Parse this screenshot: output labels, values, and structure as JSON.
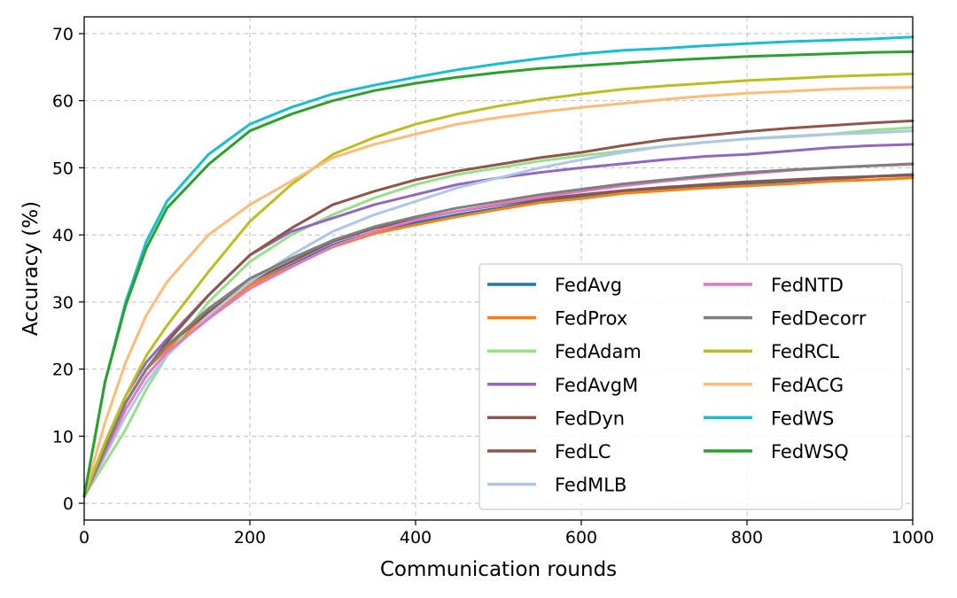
{
  "chart_data": {
    "type": "line",
    "xlabel": "Communication rounds",
    "ylabel": "Accuracy (%)",
    "xlim": [
      0,
      1000
    ],
    "ylim": [
      -2.5,
      72.5
    ],
    "xticks": [
      0,
      200,
      400,
      600,
      800,
      1000
    ],
    "yticks": [
      0,
      10,
      20,
      30,
      40,
      50,
      60,
      70
    ],
    "grid": true,
    "legend_position": "bottom-right",
    "legend_columns": 2,
    "x": [
      0,
      25,
      50,
      75,
      100,
      150,
      200,
      250,
      300,
      350,
      400,
      450,
      500,
      550,
      600,
      650,
      700,
      750,
      800,
      850,
      900,
      950,
      1000
    ],
    "series": [
      {
        "name": "FedAvg",
        "color": "#1f77b4",
        "values": [
          1,
          8,
          15,
          20,
          23,
          28,
          32.5,
          35.5,
          38.5,
          40.5,
          41.8,
          43,
          44,
          45,
          45.8,
          46.5,
          46.8,
          47.3,
          47.6,
          48,
          48.3,
          48.7,
          49
        ]
      },
      {
        "name": "FedProx",
        "color": "#ff7f0e",
        "values": [
          1,
          8,
          15,
          20,
          23,
          28,
          32.5,
          35.3,
          38.2,
          40.2,
          41.5,
          42.7,
          43.8,
          44.8,
          45.4,
          46.2,
          46.6,
          47,
          47.3,
          47.6,
          48,
          48.2,
          48.5
        ]
      },
      {
        "name": "FedAdam",
        "color": "#98df8a",
        "values": [
          1,
          6,
          11,
          17,
          22,
          30,
          36,
          40,
          43,
          45.5,
          47.5,
          49,
          50,
          51,
          51.8,
          52.5,
          53.2,
          53.8,
          54.3,
          54.6,
          55,
          55.6,
          56
        ]
      },
      {
        "name": "FedAvgM",
        "color": "#9467bd",
        "values": [
          1,
          9,
          16,
          21,
          24.5,
          31,
          37,
          40.5,
          42.5,
          44.5,
          46,
          47.5,
          48.5,
          49.3,
          50,
          50.6,
          51.2,
          51.7,
          52,
          52.5,
          53,
          53.3,
          53.5
        ]
      },
      {
        "name": "FedDyn",
        "color": "#8c564b",
        "values": [
          1,
          8,
          15,
          20,
          24,
          31,
          37,
          41,
          44.5,
          46.5,
          48.2,
          49.5,
          50.5,
          51.5,
          52.3,
          53.3,
          54.2,
          54.8,
          55.4,
          55.9,
          56.3,
          56.7,
          57
        ]
      },
      {
        "name": "FedLC",
        "color": "#8c564b",
        "values": [
          1,
          8,
          15,
          20,
          23.5,
          28.5,
          33,
          36,
          39,
          41,
          42.3,
          43.5,
          44.5,
          45.3,
          46,
          46.6,
          47.1,
          47.5,
          47.9,
          48.2,
          48.5,
          48.7,
          48.9
        ]
      },
      {
        "name": "FedMLB",
        "color": "#aec7e8",
        "values": [
          1,
          7,
          13,
          18,
          22,
          28,
          33,
          37,
          40.5,
          43,
          45,
          47,
          48.5,
          50,
          51.2,
          52.3,
          53.2,
          53.8,
          54.3,
          54.7,
          55,
          55.2,
          55.5
        ]
      },
      {
        "name": "FedNTD",
        "color": "#e377c2",
        "values": [
          1,
          7.5,
          14,
          19,
          22.5,
          27.5,
          32,
          35.2,
          38.3,
          40.5,
          42.2,
          43.5,
          44.6,
          45.6,
          46.5,
          47.3,
          48,
          48.6,
          49.1,
          49.6,
          50,
          50.3,
          50.5
        ]
      },
      {
        "name": "FedDecorr",
        "color": "#7f7f7f",
        "values": [
          1,
          8,
          15,
          20,
          23.5,
          29,
          33.5,
          36.5,
          39.2,
          41.2,
          42.7,
          44,
          45,
          46,
          46.8,
          47.6,
          48.2,
          48.8,
          49.3,
          49.7,
          50,
          50.3,
          50.6
        ]
      },
      {
        "name": "FedRCL",
        "color": "#bcbd22",
        "values": [
          1,
          9,
          16,
          22,
          26.5,
          34.5,
          42,
          47.5,
          52,
          54.5,
          56.5,
          58,
          59.2,
          60.2,
          61,
          61.7,
          62.2,
          62.6,
          63,
          63.3,
          63.6,
          63.8,
          64
        ]
      },
      {
        "name": "FedACG",
        "color": "#ffbb78",
        "values": [
          1,
          12,
          21,
          28,
          33,
          40,
          44.5,
          48,
          51.5,
          53.5,
          55,
          56.5,
          57.5,
          58.3,
          59,
          59.6,
          60.2,
          60.7,
          61.1,
          61.4,
          61.7,
          61.9,
          62
        ]
      },
      {
        "name": "FedWS",
        "color": "#17becf",
        "values": [
          1,
          18,
          30,
          39,
          45,
          52,
          56.5,
          59,
          61,
          62.3,
          63.5,
          64.6,
          65.5,
          66.3,
          67,
          67.5,
          67.8,
          68.2,
          68.5,
          68.8,
          69,
          69.2,
          69.5
        ]
      },
      {
        "name": "FedWSQ",
        "color": "#2ca02c",
        "values": [
          1,
          18,
          29.5,
          38,
          44,
          50.5,
          55.5,
          58,
          60,
          61.5,
          62.6,
          63.5,
          64.2,
          64.8,
          65.2,
          65.6,
          66,
          66.3,
          66.6,
          66.8,
          67,
          67.2,
          67.3
        ]
      }
    ]
  }
}
